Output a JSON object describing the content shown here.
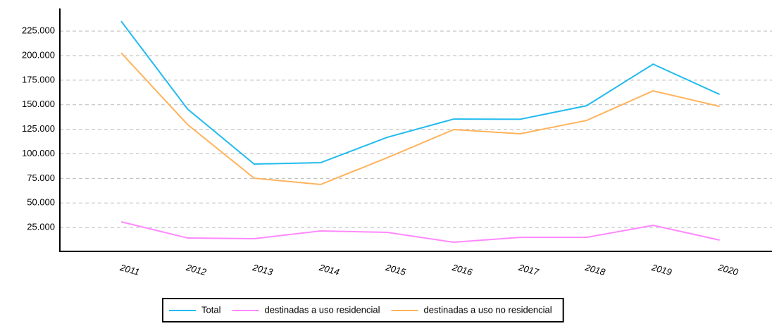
{
  "chart_data": {
    "type": "line",
    "categories": [
      "2011",
      "2012",
      "2013",
      "2014",
      "2015",
      "2016",
      "2017",
      "2018",
      "2019",
      "2020"
    ],
    "series": [
      {
        "name": "Total",
        "color": "#22bbee",
        "values": [
          235000,
          145500,
          89600,
          91000,
          116800,
          135400,
          135200,
          149000,
          191300,
          160500
        ]
      },
      {
        "name": "destinadas a uso residencial",
        "color": "#ff88ff",
        "values": [
          30800,
          14300,
          13600,
          21500,
          20100,
          10000,
          15000,
          15000,
          27200,
          12200
        ]
      },
      {
        "name": "destinadas a uso no residencial",
        "color": "#ffb35c",
        "values": [
          202800,
          129700,
          75200,
          68800,
          96000,
          124700,
          120400,
          134000,
          164100,
          148300
        ]
      }
    ],
    "ylim": [
      0,
      248000
    ],
    "yticks": [
      {
        "value": 25000,
        "label": "25.000"
      },
      {
        "value": 50000,
        "label": "50.000"
      },
      {
        "value": 75000,
        "label": "75.000"
      },
      {
        "value": 100000,
        "label": "100.000"
      },
      {
        "value": 125000,
        "label": "125.000"
      },
      {
        "value": 150000,
        "label": "150.000"
      },
      {
        "value": 175000,
        "label": "175.000"
      },
      {
        "value": 200000,
        "label": "200.000"
      },
      {
        "value": 225000,
        "label": "225.000"
      }
    ],
    "grid": true,
    "legend": "bottom"
  }
}
